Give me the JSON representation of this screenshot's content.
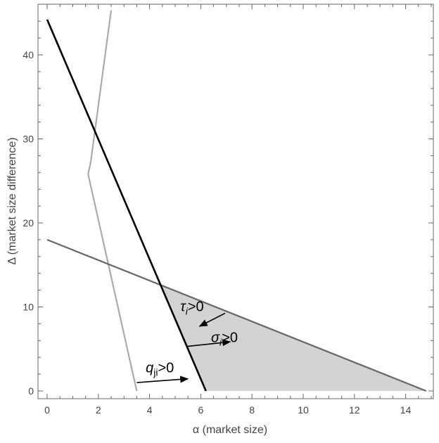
{
  "chart_data": {
    "type": "line",
    "title": "",
    "xlabel": "α (market size)",
    "ylabel": "Δ (market size difference)",
    "xlim": [
      0,
      15
    ],
    "ylim": [
      0,
      45
    ],
    "xticks": [
      0,
      2,
      4,
      6,
      8,
      10,
      12,
      14
    ],
    "yticks": [
      0,
      10,
      20,
      30,
      40
    ],
    "grid": false,
    "legend": "none",
    "colors": {
      "black_line": "#000000",
      "dark_gray_line": "#666666",
      "light_gray_line": "#aaaaaa",
      "shaded_region": "#d3d3d3",
      "frame": "#666666",
      "arrow": "#000000"
    },
    "series": [
      {
        "id": "black",
        "points": [
          [
            0,
            44.2
          ],
          [
            6.2,
            0
          ]
        ]
      },
      {
        "id": "dark_gray",
        "points": [
          [
            0,
            18.0
          ],
          [
            14.8,
            0
          ]
        ]
      },
      {
        "id": "light_gray",
        "points": [
          [
            3.5,
            0
          ],
          [
            1.6,
            25.8
          ],
          [
            1.7,
            27.2
          ],
          [
            2.5,
            45.3
          ]
        ]
      }
    ],
    "shaded_region": {
      "points": [
        [
          4.48,
          12.55
        ],
        [
          14.8,
          0
        ],
        [
          6.2,
          0
        ]
      ]
    },
    "annotations": [
      {
        "id": "tau",
        "base": "τ",
        "sub": "i",
        "rest": ">0",
        "text_at": [
          5.2,
          9.5
        ],
        "arrow": {
          "from": [
            6.95,
            9.25
          ],
          "to": [
            5.95,
            7.7
          ]
        }
      },
      {
        "id": "sigma",
        "base": "σ",
        "sub": "i",
        "rest": ">0",
        "text_at": [
          6.4,
          5.8
        ],
        "arrow": {
          "from": [
            5.45,
            5.3
          ],
          "to": [
            7.15,
            5.85
          ]
        }
      },
      {
        "id": "q",
        "base": "q",
        "sub": "ji",
        "rest": ">0",
        "text_at": [
          3.85,
          2.2
        ],
        "arrow": {
          "from": [
            3.5,
            1.0
          ],
          "to": [
            5.5,
            1.45
          ]
        }
      }
    ]
  }
}
